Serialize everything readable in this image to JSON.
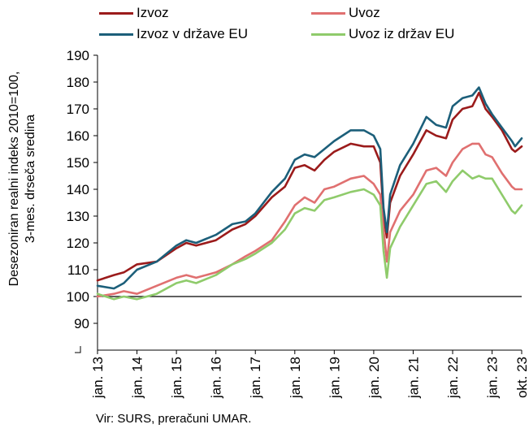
{
  "chart_data": {
    "type": "line",
    "ylabel_line1": "Desezoniran realni indeks 2010=100,",
    "ylabel_line2": "3-mes. drseča sredina",
    "ylim": [
      80,
      190
    ],
    "y_ticks": [
      "190",
      "180",
      "170",
      "160",
      "150",
      "140",
      "130",
      "120",
      "110",
      "100",
      "90"
    ],
    "x_range": [
      "2013-01",
      "2023-10"
    ],
    "x_tick_labels": [
      "jan. 13",
      "jan. 14",
      "jan. 15",
      "jan. 16",
      "jan. 17",
      "jan. 18",
      "jan. 19",
      "jan. 20",
      "jan. 21",
      "jan. 22",
      "jan. 23",
      "okt. 23"
    ],
    "x_tick_dates": [
      "2013-01",
      "2014-01",
      "2015-01",
      "2016-01",
      "2017-01",
      "2018-01",
      "2019-01",
      "2020-01",
      "2021-01",
      "2022-01",
      "2023-01",
      "2023-10"
    ],
    "reference_line": 100,
    "grid": false,
    "legend_position": "top",
    "series": [
      {
        "name": "Izvoz",
        "color": "#9b1b1b",
        "points": [
          [
            "2013-01",
            106
          ],
          [
            "2013-06",
            108
          ],
          [
            "2013-09",
            109
          ],
          [
            "2014-01",
            112
          ],
          [
            "2014-07",
            113
          ],
          [
            "2015-01",
            118
          ],
          [
            "2015-04",
            120
          ],
          [
            "2015-07",
            119
          ],
          [
            "2016-01",
            121
          ],
          [
            "2016-06",
            125
          ],
          [
            "2016-10",
            127
          ],
          [
            "2017-01",
            130
          ],
          [
            "2017-06",
            137
          ],
          [
            "2017-10",
            141
          ],
          [
            "2018-01",
            148
          ],
          [
            "2018-04",
            149
          ],
          [
            "2018-07",
            147
          ],
          [
            "2018-10",
            151
          ],
          [
            "2019-01",
            154
          ],
          [
            "2019-06",
            157
          ],
          [
            "2019-10",
            156
          ],
          [
            "2020-01",
            156
          ],
          [
            "2020-03",
            150
          ],
          [
            "2020-04",
            130
          ],
          [
            "2020-05",
            122
          ],
          [
            "2020-06",
            135
          ],
          [
            "2020-09",
            145
          ],
          [
            "2021-01",
            153
          ],
          [
            "2021-05",
            162
          ],
          [
            "2021-08",
            160
          ],
          [
            "2021-11",
            159
          ],
          [
            "2022-01",
            166
          ],
          [
            "2022-04",
            170
          ],
          [
            "2022-07",
            171
          ],
          [
            "2022-09",
            176
          ],
          [
            "2022-11",
            170
          ],
          [
            "2023-01",
            167
          ],
          [
            "2023-04",
            162
          ],
          [
            "2023-07",
            155
          ],
          [
            "2023-08",
            154
          ],
          [
            "2023-10",
            156
          ]
        ]
      },
      {
        "name": "Uvoz",
        "color": "#e07070",
        "points": [
          [
            "2013-01",
            100
          ],
          [
            "2013-06",
            101
          ],
          [
            "2013-09",
            102
          ],
          [
            "2014-01",
            101
          ],
          [
            "2014-07",
            104
          ],
          [
            "2015-01",
            107
          ],
          [
            "2015-04",
            108
          ],
          [
            "2015-07",
            107
          ],
          [
            "2016-01",
            109
          ],
          [
            "2016-06",
            112
          ],
          [
            "2016-10",
            115
          ],
          [
            "2017-01",
            117
          ],
          [
            "2017-06",
            121
          ],
          [
            "2017-10",
            128
          ],
          [
            "2018-01",
            134
          ],
          [
            "2018-04",
            137
          ],
          [
            "2018-07",
            135
          ],
          [
            "2018-10",
            140
          ],
          [
            "2019-01",
            141
          ],
          [
            "2019-06",
            144
          ],
          [
            "2019-10",
            145
          ],
          [
            "2020-01",
            142
          ],
          [
            "2020-03",
            138
          ],
          [
            "2020-04",
            125
          ],
          [
            "2020-05",
            113
          ],
          [
            "2020-06",
            124
          ],
          [
            "2020-09",
            132
          ],
          [
            "2021-01",
            138
          ],
          [
            "2021-05",
            147
          ],
          [
            "2021-08",
            148
          ],
          [
            "2021-11",
            145
          ],
          [
            "2022-01",
            150
          ],
          [
            "2022-04",
            155
          ],
          [
            "2022-07",
            157
          ],
          [
            "2022-09",
            157
          ],
          [
            "2022-11",
            153
          ],
          [
            "2023-01",
            152
          ],
          [
            "2023-04",
            146
          ],
          [
            "2023-07",
            141
          ],
          [
            "2023-08",
            140
          ],
          [
            "2023-10",
            140
          ]
        ]
      },
      {
        "name": "Izvoz v države EU",
        "color": "#1c5f7a",
        "points": [
          [
            "2013-01",
            104
          ],
          [
            "2013-06",
            103
          ],
          [
            "2013-09",
            105
          ],
          [
            "2014-01",
            110
          ],
          [
            "2014-07",
            113
          ],
          [
            "2015-01",
            119
          ],
          [
            "2015-04",
            121
          ],
          [
            "2015-07",
            120
          ],
          [
            "2016-01",
            123
          ],
          [
            "2016-06",
            127
          ],
          [
            "2016-10",
            128
          ],
          [
            "2017-01",
            131
          ],
          [
            "2017-06",
            139
          ],
          [
            "2017-10",
            144
          ],
          [
            "2018-01",
            151
          ],
          [
            "2018-04",
            153
          ],
          [
            "2018-07",
            152
          ],
          [
            "2018-10",
            155
          ],
          [
            "2019-01",
            158
          ],
          [
            "2019-06",
            162
          ],
          [
            "2019-10",
            162
          ],
          [
            "2020-01",
            160
          ],
          [
            "2020-03",
            155
          ],
          [
            "2020-04",
            133
          ],
          [
            "2020-05",
            124
          ],
          [
            "2020-06",
            138
          ],
          [
            "2020-09",
            149
          ],
          [
            "2021-01",
            157
          ],
          [
            "2021-05",
            167
          ],
          [
            "2021-08",
            164
          ],
          [
            "2021-11",
            163
          ],
          [
            "2022-01",
            171
          ],
          [
            "2022-04",
            174
          ],
          [
            "2022-07",
            175
          ],
          [
            "2022-09",
            178
          ],
          [
            "2022-11",
            172
          ],
          [
            "2023-01",
            168
          ],
          [
            "2023-04",
            163
          ],
          [
            "2023-07",
            158
          ],
          [
            "2023-08",
            156
          ],
          [
            "2023-10",
            159
          ]
        ]
      },
      {
        "name": "Uvoz iz držav EU",
        "color": "#8fcb6b",
        "points": [
          [
            "2013-01",
            101
          ],
          [
            "2013-06",
            99
          ],
          [
            "2013-09",
            100
          ],
          [
            "2014-01",
            99
          ],
          [
            "2014-07",
            101
          ],
          [
            "2015-01",
            105
          ],
          [
            "2015-04",
            106
          ],
          [
            "2015-07",
            105
          ],
          [
            "2016-01",
            108
          ],
          [
            "2016-06",
            112
          ],
          [
            "2016-10",
            114
          ],
          [
            "2017-01",
            116
          ],
          [
            "2017-06",
            120
          ],
          [
            "2017-10",
            125
          ],
          [
            "2018-01",
            131
          ],
          [
            "2018-04",
            133
          ],
          [
            "2018-07",
            132
          ],
          [
            "2018-10",
            136
          ],
          [
            "2019-01",
            137
          ],
          [
            "2019-06",
            139
          ],
          [
            "2019-10",
            140
          ],
          [
            "2020-01",
            138
          ],
          [
            "2020-03",
            134
          ],
          [
            "2020-04",
            117
          ],
          [
            "2020-05",
            107
          ],
          [
            "2020-06",
            118
          ],
          [
            "2020-09",
            126
          ],
          [
            "2021-01",
            134
          ],
          [
            "2021-05",
            142
          ],
          [
            "2021-08",
            143
          ],
          [
            "2021-11",
            139
          ],
          [
            "2022-01",
            143
          ],
          [
            "2022-04",
            147
          ],
          [
            "2022-07",
            144
          ],
          [
            "2022-09",
            145
          ],
          [
            "2022-11",
            144
          ],
          [
            "2023-01",
            144
          ],
          [
            "2023-04",
            138
          ],
          [
            "2023-07",
            132
          ],
          [
            "2023-08",
            131
          ],
          [
            "2023-10",
            134
          ]
        ]
      }
    ],
    "source": "Vir: SURS, preračuni UMAR."
  }
}
